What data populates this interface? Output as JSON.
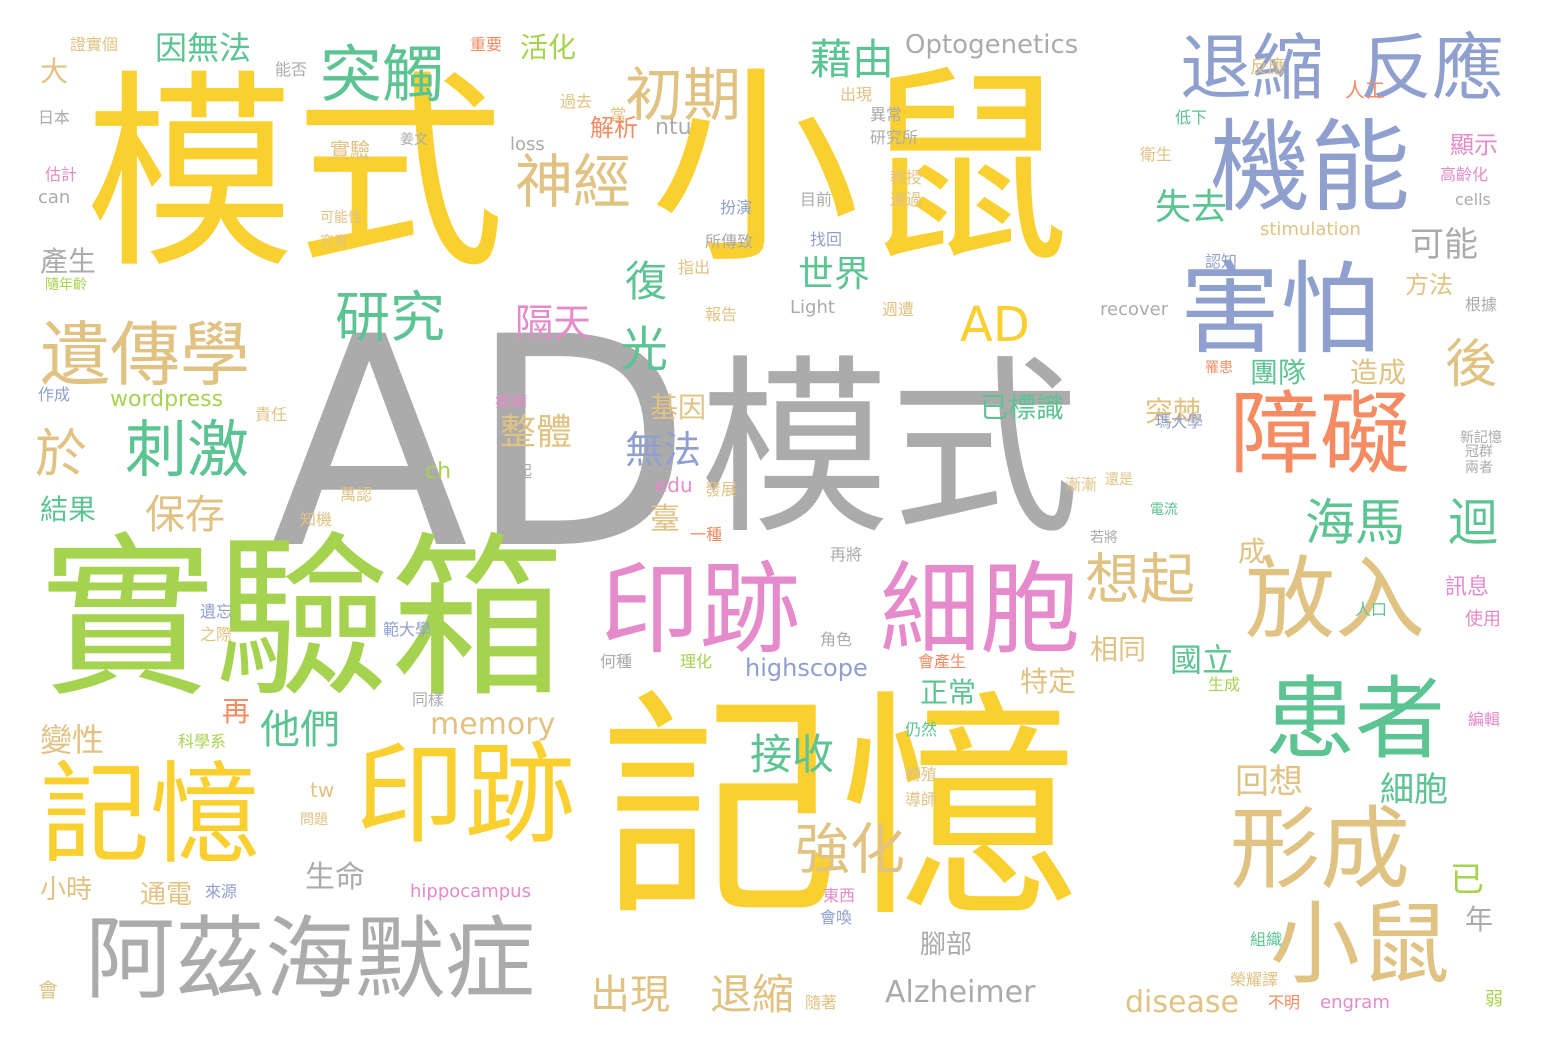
{
  "palette": {
    "yellow": "#F9D030",
    "gray": "#ABABAB",
    "green": "#A6D34F",
    "pink": "#E58ACB",
    "blue": "#8FA0CF",
    "tan": "#E0C283",
    "teal": "#5CC392",
    "orange": "#F48B63"
  },
  "words": [
    {
      "text": "模式",
      "color": "yellow"
    },
    {
      "text": "小鼠",
      "color": "yellow"
    },
    {
      "text": "AD",
      "color": "gray"
    },
    {
      "text": "模式",
      "color": "gray"
    },
    {
      "text": "實驗箱",
      "color": "green"
    },
    {
      "text": "記憶",
      "color": "yellow"
    },
    {
      "text": "機能",
      "color": "blue"
    },
    {
      "text": "退縮",
      "color": "blue"
    },
    {
      "text": "反應",
      "color": "blue"
    },
    {
      "text": "害怕",
      "color": "blue"
    },
    {
      "text": "障礙",
      "color": "orange"
    },
    {
      "text": "記憶",
      "color": "yellow"
    },
    {
      "text": "印跡",
      "color": "yellow"
    },
    {
      "text": "印跡",
      "color": "pink"
    },
    {
      "text": "細胞",
      "color": "pink"
    },
    {
      "text": "阿茲海默症",
      "color": "gray"
    },
    {
      "text": "放入",
      "color": "tan"
    },
    {
      "text": "患者",
      "color": "teal"
    },
    {
      "text": "形成",
      "color": "tan"
    },
    {
      "text": "小鼠",
      "color": "tan"
    },
    {
      "text": "遺傳學",
      "color": "tan"
    },
    {
      "text": "突觸",
      "color": "teal"
    },
    {
      "text": "初期",
      "color": "tan"
    },
    {
      "text": "神經",
      "color": "tan"
    },
    {
      "text": "研究",
      "color": "teal"
    },
    {
      "text": "刺激",
      "color": "teal"
    },
    {
      "text": "AD",
      "color": "yellow"
    },
    {
      "text": "想起",
      "color": "tan"
    },
    {
      "text": "強化",
      "color": "tan"
    },
    {
      "text": "海馬",
      "color": "teal"
    },
    {
      "text": "迴",
      "color": "teal"
    },
    {
      "text": "藉由",
      "color": "teal"
    },
    {
      "text": "Optogenetics",
      "color": "gray"
    },
    {
      "text": "光",
      "color": "teal"
    },
    {
      "text": "於",
      "color": "tan"
    },
    {
      "text": "後",
      "color": "tan"
    },
    {
      "text": "保存",
      "color": "tan"
    },
    {
      "text": "復",
      "color": "teal"
    },
    {
      "text": "世界",
      "color": "teal"
    },
    {
      "text": "失去",
      "color": "teal"
    },
    {
      "text": "可能",
      "color": "gray"
    },
    {
      "text": "隔天",
      "color": "pink"
    },
    {
      "text": "無法",
      "color": "blue"
    },
    {
      "text": "整體",
      "color": "tan"
    },
    {
      "text": "出現",
      "color": "tan"
    },
    {
      "text": "退縮",
      "color": "tan"
    },
    {
      "text": "他們",
      "color": "teal"
    },
    {
      "text": "接收",
      "color": "teal"
    },
    {
      "text": "memory",
      "color": "tan"
    },
    {
      "text": "生命",
      "color": "gray"
    },
    {
      "text": "Alzheimer",
      "color": "gray"
    },
    {
      "text": "disease",
      "color": "tan"
    },
    {
      "text": "因無法",
      "color": "teal"
    },
    {
      "text": "活化",
      "color": "green"
    },
    {
      "text": "大",
      "color": "tan"
    },
    {
      "text": "產生",
      "color": "gray"
    },
    {
      "text": "變性",
      "color": "tan"
    },
    {
      "text": "結果",
      "color": "teal"
    },
    {
      "text": "小時",
      "color": "tan"
    },
    {
      "text": "通電",
      "color": "tan"
    },
    {
      "text": "再",
      "color": "orange"
    },
    {
      "text": "團隊",
      "color": "teal"
    },
    {
      "text": "造成",
      "color": "tan"
    },
    {
      "text": "已標識",
      "color": "teal"
    },
    {
      "text": "突棘",
      "color": "tan"
    },
    {
      "text": "國立",
      "color": "teal"
    },
    {
      "text": "相同",
      "color": "tan"
    },
    {
      "text": "正常",
      "color": "teal"
    },
    {
      "text": "特定",
      "color": "tan"
    },
    {
      "text": "回想",
      "color": "tan"
    },
    {
      "text": "細胞",
      "color": "teal"
    },
    {
      "text": "已",
      "color": "green"
    },
    {
      "text": "年",
      "color": "gray"
    },
    {
      "text": "腳部",
      "color": "gray"
    },
    {
      "text": "顯示",
      "color": "pink"
    },
    {
      "text": "方法",
      "color": "tan"
    },
    {
      "text": "訊息",
      "color": "pink"
    },
    {
      "text": "使用",
      "color": "pink"
    },
    {
      "text": "基因",
      "color": "tan"
    },
    {
      "text": "臺",
      "color": "tan"
    },
    {
      "text": "成",
      "color": "tan"
    },
    {
      "text": "highscope",
      "color": "blue"
    },
    {
      "text": "wordpress",
      "color": "green"
    },
    {
      "text": "hippocampus",
      "color": "pink"
    },
    {
      "text": "engram",
      "color": "pink"
    },
    {
      "text": "edu",
      "color": "pink"
    },
    {
      "text": "ch",
      "color": "green"
    },
    {
      "text": "tw",
      "color": "tan"
    },
    {
      "text": "ntu",
      "color": "gray"
    },
    {
      "text": "loss",
      "color": "gray"
    },
    {
      "text": "stimulation",
      "color": "tan"
    },
    {
      "text": "cells",
      "color": "gray"
    },
    {
      "text": "recover",
      "color": "gray"
    },
    {
      "text": "Light",
      "color": "gray"
    },
    {
      "text": "can",
      "color": "gray"
    },
    {
      "text": "解析",
      "color": "orange"
    },
    {
      "text": "實驗",
      "color": "tan"
    },
    {
      "text": "證實個",
      "color": "tan"
    },
    {
      "text": "重要",
      "color": "orange"
    },
    {
      "text": "能否",
      "color": "gray"
    },
    {
      "text": "日本",
      "color": "gray"
    },
    {
      "text": "估計",
      "color": "pink"
    },
    {
      "text": "可能性",
      "color": "tan"
    },
    {
      "text": "究竟",
      "color": "tan"
    },
    {
      "text": "隨年齡",
      "color": "green"
    },
    {
      "text": "作成",
      "color": "blue"
    },
    {
      "text": "責任",
      "color": "tan"
    },
    {
      "text": "知機",
      "color": "tan"
    },
    {
      "text": "萬認",
      "color": "tan"
    },
    {
      "text": "過去",
      "color": "tan"
    },
    {
      "text": "當",
      "color": "tan"
    },
    {
      "text": "出現",
      "color": "tan"
    },
    {
      "text": "異常",
      "color": "gray"
    },
    {
      "text": "研究所",
      "color": "gray"
    },
    {
      "text": "低下",
      "color": "teal"
    },
    {
      "text": "衛生",
      "color": "tan"
    },
    {
      "text": "教授",
      "color": "tan"
    },
    {
      "text": "通過",
      "color": "tan"
    },
    {
      "text": "扮演",
      "color": "blue"
    },
    {
      "text": "目前",
      "color": "gray"
    },
    {
      "text": "找回",
      "color": "blue"
    },
    {
      "text": "所傳致",
      "color": "gray"
    },
    {
      "text": "指出",
      "color": "tan"
    },
    {
      "text": "報告",
      "color": "tan"
    },
    {
      "text": "週遭",
      "color": "tan"
    },
    {
      "text": "認知",
      "color": "blue"
    },
    {
      "text": "高齡化",
      "color": "pink"
    },
    {
      "text": "根據",
      "color": "gray"
    },
    {
      "text": "罹患",
      "color": "orange"
    },
    {
      "text": "冠群",
      "color": "gray"
    },
    {
      "text": "新記憶",
      "color": "gray"
    },
    {
      "text": "兩者",
      "color": "gray"
    },
    {
      "text": "還是",
      "color": "tan"
    },
    {
      "text": "電流",
      "color": "teal"
    },
    {
      "text": "若將",
      "color": "gray"
    },
    {
      "text": "漸漸",
      "color": "tan"
    },
    {
      "text": "疾病",
      "color": "pink"
    },
    {
      "text": "引起",
      "color": "gray"
    },
    {
      "text": "發展",
      "color": "tan"
    },
    {
      "text": "一種",
      "color": "orange"
    },
    {
      "text": "再將",
      "color": "gray"
    },
    {
      "text": "遺忘",
      "color": "blue"
    },
    {
      "text": "之際",
      "color": "tan"
    },
    {
      "text": "角色",
      "color": "gray"
    },
    {
      "text": "何種",
      "color": "gray"
    },
    {
      "text": "理化",
      "color": "green"
    },
    {
      "text": "會產生",
      "color": "orange"
    },
    {
      "text": "生成",
      "color": "green"
    },
    {
      "text": "同樣",
      "color": "gray"
    },
    {
      "text": "科學系",
      "color": "green"
    },
    {
      "text": "仍然",
      "color": "teal"
    },
    {
      "text": "轉殖",
      "color": "tan"
    },
    {
      "text": "導師",
      "color": "tan"
    },
    {
      "text": "問題",
      "color": "tan"
    },
    {
      "text": "來源",
      "color": "blue"
    },
    {
      "text": "東西",
      "color": "pink"
    },
    {
      "text": "會喚",
      "color": "blue"
    },
    {
      "text": "隨著",
      "color": "tan"
    },
    {
      "text": "不明",
      "color": "orange"
    },
    {
      "text": "組織",
      "color": "teal"
    },
    {
      "text": "榮耀譯",
      "color": "tan"
    },
    {
      "text": "人口",
      "color": "teal"
    },
    {
      "text": "編輯",
      "color": "pink"
    },
    {
      "text": "人工",
      "color": "orange"
    },
    {
      "text": "反應",
      "color": "tan"
    },
    {
      "text": "瑪大學",
      "color": "blue"
    },
    {
      "text": "範大學",
      "color": "blue"
    },
    {
      "text": "姜文",
      "color": "gray"
    },
    {
      "text": "會",
      "color": "tan"
    },
    {
      "text": "弱",
      "color": "green"
    }
  ]
}
